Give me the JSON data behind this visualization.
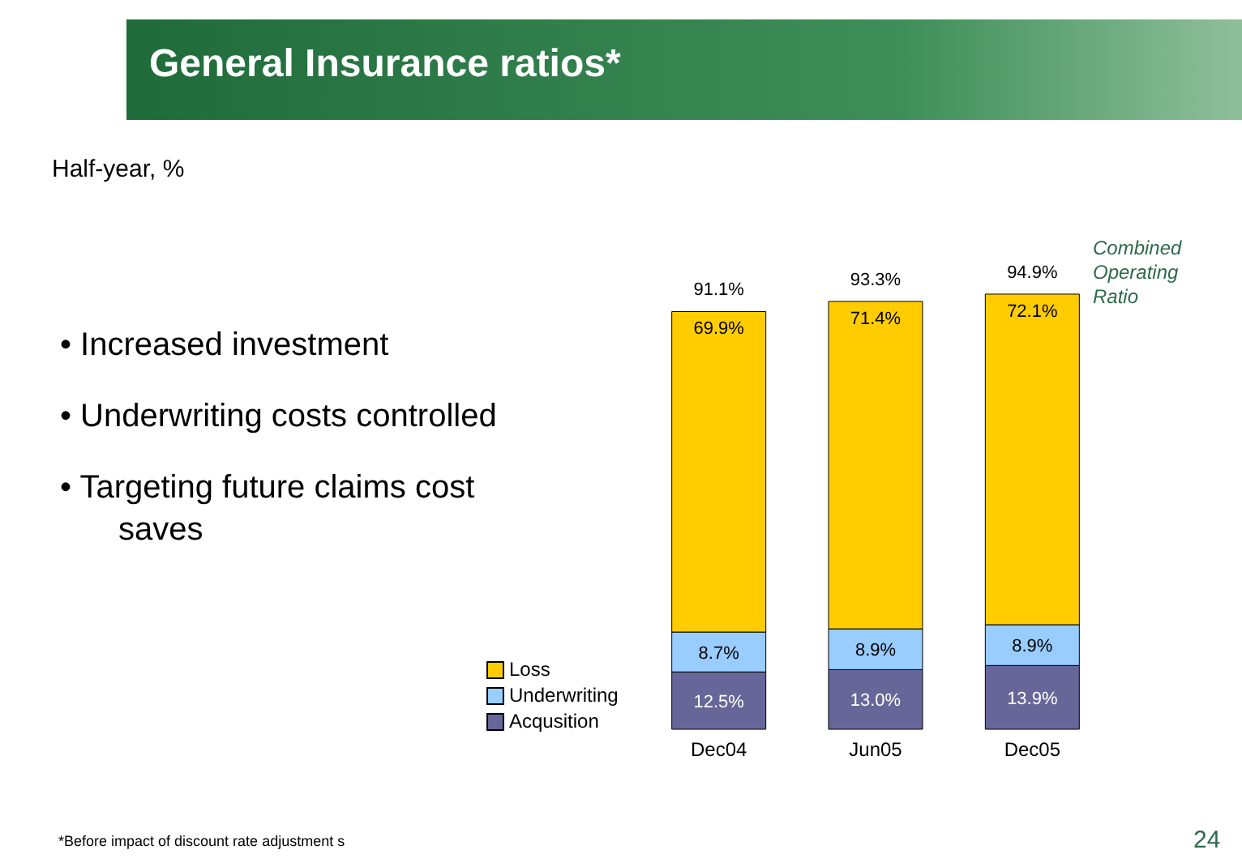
{
  "chart_data": {
    "type": "bar",
    "title": "General Insurance ratios*",
    "subtitle": "Half-year, %",
    "categories": [
      "Dec04",
      "Jun05",
      "Dec05"
    ],
    "stacked": true,
    "legend": "left",
    "series": [
      {
        "name": "Acqusition",
        "color": "#666699",
        "values": [
          12.5,
          13.0,
          13.9
        ],
        "value_labels": [
          "12.5%",
          "13.0%",
          "13.9%"
        ]
      },
      {
        "name": "Underwriting",
        "color": "#99ccff",
        "values": [
          8.7,
          8.9,
          8.9
        ],
        "value_labels": [
          "8.7%",
          "8.9%",
          "8.9%"
        ]
      },
      {
        "name": "Loss",
        "color": "#ffcc00",
        "values": [
          69.9,
          71.4,
          72.1
        ],
        "value_labels": [
          "69.9%",
          "71.4%",
          "72.1%"
        ]
      }
    ],
    "totals": [
      "91.1%",
      "93.3%",
      "94.9%"
    ],
    "annotations": [
      "• Increased investment",
      "• Underwriting costs controlled",
      "• Targeting future claims cost saves",
      "Combined Operating Ratio",
      "*Before impact of discount rate adjustment s",
      "24"
    ]
  }
}
